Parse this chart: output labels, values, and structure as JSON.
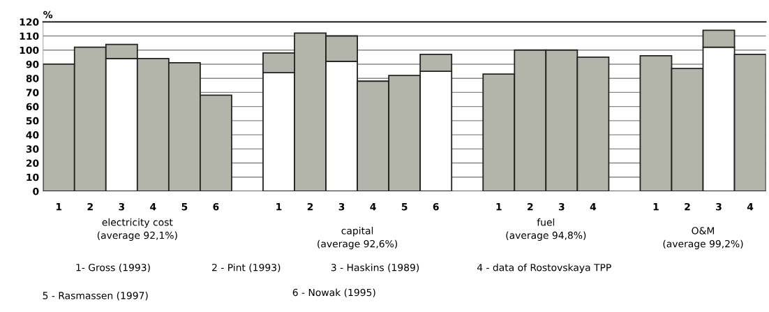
{
  "chart_data": {
    "type": "bar",
    "stacked": true,
    "categories": [
      "1",
      "2",
      "3",
      "4",
      "5",
      "6",
      null,
      "1",
      "2",
      "3",
      "4",
      "5",
      "6",
      null,
      "1",
      "2",
      "3",
      "4",
      null,
      "1",
      "2",
      "3",
      "4"
    ],
    "series": [
      {
        "values": [
          90,
          102,
          94,
          94,
          91,
          68,
          null,
          84,
          112,
          92,
          78,
          82,
          85,
          null,
          83,
          100,
          100,
          95,
          null,
          96,
          87,
          102,
          97
        ],
        "colors": [
          "#b4b5aa",
          "#b4b5aa",
          "#ffffff",
          "#b4b5aa",
          "#b4b5aa",
          "#b4b5aa",
          "#b4b5aa",
          "#ffffff",
          "#b4b5aa",
          "#ffffff",
          "#b4b5aa",
          "#b4b5aa",
          "#ffffff",
          "#b4b5aa",
          "#b4b5aa",
          "#b4b5aa",
          "#b4b5aa",
          "#b4b5aa",
          "#b4b5aa",
          "#b4b5aa",
          "#b4b5aa",
          "#ffffff",
          "#b4b5aa"
        ]
      },
      {
        "color": "#b4b5aa",
        "values": [
          null,
          null,
          10,
          null,
          null,
          null,
          null,
          14,
          null,
          18,
          null,
          null,
          12,
          null,
          null,
          null,
          null,
          null,
          null,
          null,
          null,
          12,
          null
        ]
      }
    ],
    "ylabel": "%",
    "ylim": [
      0,
      120
    ],
    "yticks": [
      0,
      10,
      20,
      30,
      40,
      50,
      60,
      70,
      80,
      90,
      100,
      110,
      120
    ],
    "grid": "y",
    "annotations": [
      "electricity cost\n(average 92,1%)",
      "capital\n(average 92,6%)",
      "fuel\n(average 94,8%)",
      "O&M\n(average 99,2%)",
      "1- Gross (1993)",
      "2 - Pint (1993)",
      "3 - Haskins (1989)",
      "4 - data of Rostovskaya TPP",
      "5 - Rasmassen (1997)",
      "6 - Nowak (1995)"
    ]
  }
}
